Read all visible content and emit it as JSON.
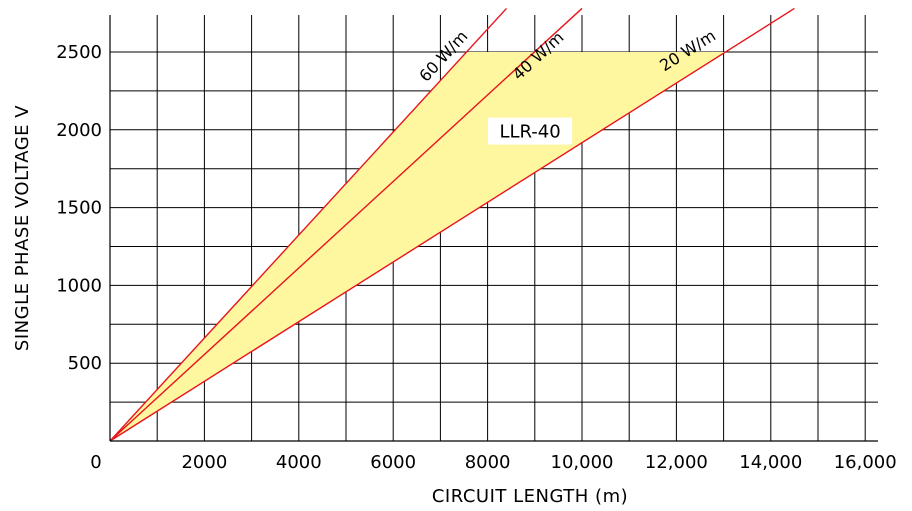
{
  "chart_data": {
    "type": "line",
    "title": "",
    "xlabel": "CIRCUIT LENGTH (m)",
    "ylabel": "SINGLE PHASE VOLTAGE V",
    "xlim": [
      0,
      16000
    ],
    "ylim": [
      0,
      2750
    ],
    "x_ticks": [
      {
        "value": 0,
        "label": "0"
      },
      {
        "value": 2000,
        "label": "2000"
      },
      {
        "value": 4000,
        "label": "4000"
      },
      {
        "value": 6000,
        "label": "6000"
      },
      {
        "value": 8000,
        "label": "8000"
      },
      {
        "value": 10000,
        "label": "10,000"
      },
      {
        "value": 12000,
        "label": "12,000"
      },
      {
        "value": 14000,
        "label": "14,000"
      },
      {
        "value": 16000,
        "label": "16,000"
      }
    ],
    "y_ticks": [
      {
        "value": 500,
        "label": "500"
      },
      {
        "value": 1000,
        "label": "1000"
      },
      {
        "value": 1500,
        "label": "1500"
      },
      {
        "value": 2000,
        "label": "2000"
      },
      {
        "value": 2500,
        "label": "2500"
      }
    ],
    "grid": true,
    "series": [
      {
        "name": "60 W/m",
        "x": [
          0,
          8400
        ],
        "y": [
          0,
          2780
        ]
      },
      {
        "name": "40 W/m",
        "x": [
          0,
          10000
        ],
        "y": [
          0,
          2780
        ]
      },
      {
        "name": "20 W/m",
        "x": [
          0,
          14500
        ],
        "y": [
          0,
          2780
        ]
      }
    ],
    "region": {
      "label": "LLR-40",
      "x": [
        0,
        7550,
        12300,
        13050,
        0
      ],
      "y": [
        0,
        2500,
        2500,
        2500,
        0
      ]
    },
    "colors": {
      "line": "#e8141c",
      "region_fill": "#fff6a0",
      "grid": "#000000"
    }
  }
}
